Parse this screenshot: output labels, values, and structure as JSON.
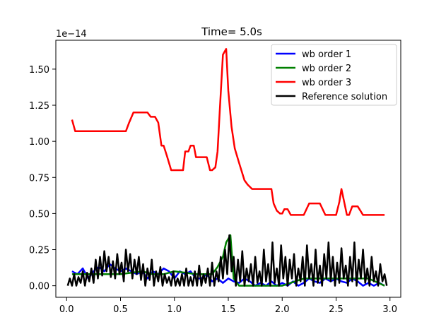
{
  "chart_data": {
    "type": "line",
    "title": "Time= 5.0s",
    "xlabel": "",
    "ylabel": "",
    "y_offset_label": "1e−14",
    "xlim": [
      -0.1,
      3.1
    ],
    "ylim": [
      -0.08,
      1.7
    ],
    "x_ticks": [
      0.0,
      0.5,
      1.0,
      1.5,
      2.0,
      2.5,
      3.0
    ],
    "x_tick_labels": [
      "0.0",
      "0.5",
      "1.0",
      "1.5",
      "2.0",
      "2.5",
      "3.0"
    ],
    "y_ticks": [
      0.0,
      0.25,
      0.5,
      0.75,
      1.0,
      1.25,
      1.5
    ],
    "y_tick_labels": [
      "0.00",
      "0.25",
      "0.50",
      "0.75",
      "1.00",
      "1.25",
      "1.50"
    ],
    "grid": false,
    "legend_position": "top-right",
    "series": [
      {
        "name": "wb order 1",
        "color": "#0000ff",
        "x": [
          0.05,
          0.1,
          0.15,
          0.2,
          0.25,
          0.3,
          0.35,
          0.4,
          0.45,
          0.5,
          0.55,
          0.6,
          0.65,
          0.7,
          0.75,
          0.8,
          0.85,
          0.9,
          0.95,
          1.0,
          1.05,
          1.1,
          1.15,
          1.2,
          1.25,
          1.3,
          1.35,
          1.4,
          1.45,
          1.5,
          1.55,
          1.6,
          1.65,
          1.7,
          1.75,
          1.8,
          1.85,
          1.9,
          1.95,
          2.0,
          2.05,
          2.1,
          2.15,
          2.2,
          2.25,
          2.3,
          2.35,
          2.4,
          2.45,
          2.5,
          2.55,
          2.6,
          2.65,
          2.7,
          2.75,
          2.8,
          2.85,
          2.9,
          2.95
        ],
        "y": [
          0.1,
          0.08,
          0.12,
          0.05,
          0.1,
          0.13,
          0.1,
          0.15,
          0.12,
          0.1,
          0.12,
          0.1,
          0.08,
          0.1,
          0.05,
          0.1,
          0.08,
          0.12,
          0.1,
          0.05,
          0.1,
          0.08,
          0.1,
          0.05,
          0.05,
          0.08,
          0.03,
          0.05,
          0.02,
          0.05,
          0.03,
          0.02,
          0.05,
          0.03,
          0.0,
          0.02,
          0.0,
          0.03,
          0.0,
          0.02,
          0.0,
          0.03,
          0.0,
          0.02,
          0.05,
          0.03,
          0.02,
          0.05,
          0.03,
          0.05,
          0.03,
          0.02,
          0.05,
          0.03,
          0.0,
          0.02,
          0.0,
          0.02,
          0.0
        ]
      },
      {
        "name": "wb order 2",
        "color": "#008000",
        "x": [
          0.05,
          0.2,
          0.3,
          0.5,
          0.7,
          0.8,
          0.9,
          1.0,
          1.2,
          1.35,
          1.4,
          1.45,
          1.48,
          1.52,
          1.55,
          1.6,
          1.7,
          1.8,
          1.9,
          2.0,
          2.2,
          2.3,
          2.5,
          2.6,
          2.7,
          2.8,
          2.95
        ],
        "y": [
          0.08,
          0.08,
          0.08,
          0.08,
          0.1,
          0.08,
          0.08,
          0.1,
          0.08,
          0.08,
          0.13,
          0.2,
          0.3,
          0.35,
          0.05,
          0.0,
          0.0,
          0.0,
          0.0,
          0.0,
          0.05,
          0.05,
          0.05,
          0.05,
          0.05,
          0.05,
          0.0
        ]
      },
      {
        "name": "wb order 3",
        "color": "#ff0000",
        "x": [
          0.05,
          0.08,
          0.12,
          0.3,
          0.45,
          0.55,
          0.58,
          0.62,
          0.75,
          0.78,
          0.82,
          0.85,
          0.88,
          0.9,
          0.93,
          0.97,
          1.0,
          1.05,
          1.08,
          1.1,
          1.13,
          1.15,
          1.18,
          1.2,
          1.23,
          1.26,
          1.3,
          1.33,
          1.35,
          1.38,
          1.4,
          1.42,
          1.45,
          1.48,
          1.5,
          1.53,
          1.56,
          1.6,
          1.65,
          1.68,
          1.72,
          1.75,
          1.8,
          1.85,
          1.9,
          1.92,
          1.95,
          1.98,
          2.0,
          2.02,
          2.05,
          2.08,
          2.12,
          2.15,
          2.18,
          2.2,
          2.25,
          2.3,
          2.32,
          2.35,
          2.4,
          2.45,
          2.5,
          2.53,
          2.55,
          2.6,
          2.62,
          2.65,
          2.7,
          2.75,
          2.8,
          2.9,
          2.95
        ],
        "y": [
          1.15,
          1.07,
          1.07,
          1.07,
          1.07,
          1.07,
          1.13,
          1.2,
          1.2,
          1.17,
          1.17,
          1.13,
          0.97,
          0.97,
          0.9,
          0.8,
          0.8,
          0.8,
          0.8,
          0.93,
          0.93,
          0.97,
          0.97,
          0.89,
          0.89,
          0.89,
          0.89,
          0.8,
          0.8,
          0.82,
          0.93,
          1.2,
          1.6,
          1.64,
          1.35,
          1.1,
          0.95,
          0.85,
          0.73,
          0.7,
          0.67,
          0.67,
          0.67,
          0.67,
          0.67,
          0.57,
          0.52,
          0.5,
          0.5,
          0.53,
          0.53,
          0.49,
          0.49,
          0.49,
          0.49,
          0.49,
          0.57,
          0.57,
          0.57,
          0.57,
          0.49,
          0.49,
          0.49,
          0.58,
          0.67,
          0.49,
          0.49,
          0.55,
          0.55,
          0.49,
          0.49,
          0.49,
          0.49
        ]
      },
      {
        "name": "Reference solution",
        "color": "#000000",
        "x": [
          0.01,
          0.03,
          0.05,
          0.07,
          0.09,
          0.11,
          0.13,
          0.15,
          0.17,
          0.19,
          0.21,
          0.23,
          0.25,
          0.27,
          0.29,
          0.31,
          0.33,
          0.35,
          0.37,
          0.39,
          0.41,
          0.43,
          0.45,
          0.47,
          0.49,
          0.51,
          0.53,
          0.55,
          0.57,
          0.59,
          0.61,
          0.63,
          0.65,
          0.67,
          0.69,
          0.71,
          0.73,
          0.75,
          0.77,
          0.79,
          0.81,
          0.83,
          0.85,
          0.87,
          0.89,
          0.91,
          0.93,
          0.95,
          0.97,
          0.99,
          1.01,
          1.03,
          1.05,
          1.07,
          1.09,
          1.11,
          1.13,
          1.15,
          1.17,
          1.19,
          1.21,
          1.23,
          1.25,
          1.27,
          1.29,
          1.31,
          1.33,
          1.35,
          1.37,
          1.39,
          1.41,
          1.43,
          1.45,
          1.47,
          1.49,
          1.51,
          1.53,
          1.55,
          1.57,
          1.59,
          1.61,
          1.63,
          1.65,
          1.67,
          1.69,
          1.71,
          1.73,
          1.75,
          1.77,
          1.79,
          1.81,
          1.83,
          1.85,
          1.87,
          1.89,
          1.91,
          1.93,
          1.95,
          1.97,
          1.99,
          2.01,
          2.03,
          2.05,
          2.07,
          2.09,
          2.11,
          2.13,
          2.15,
          2.17,
          2.19,
          2.21,
          2.23,
          2.25,
          2.27,
          2.29,
          2.31,
          2.33,
          2.35,
          2.37,
          2.39,
          2.41,
          2.43,
          2.45,
          2.47,
          2.49,
          2.51,
          2.53,
          2.55,
          2.57,
          2.59,
          2.61,
          2.63,
          2.65,
          2.67,
          2.69,
          2.71,
          2.73,
          2.75,
          2.77,
          2.79,
          2.81,
          2.83,
          2.85,
          2.87,
          2.89,
          2.91,
          2.93,
          2.95,
          2.97
        ],
        "y": [
          0.0,
          0.05,
          0.0,
          0.08,
          0.0,
          0.06,
          0.02,
          0.1,
          0.0,
          0.09,
          0.03,
          0.12,
          0.02,
          0.18,
          0.05,
          0.2,
          0.07,
          0.24,
          0.1,
          0.2,
          0.06,
          0.17,
          0.05,
          0.22,
          0.08,
          0.16,
          0.03,
          0.25,
          0.1,
          0.22,
          0.05,
          0.18,
          0.08,
          0.2,
          0.04,
          0.15,
          0.0,
          0.12,
          0.04,
          0.18,
          0.0,
          0.1,
          0.03,
          0.13,
          0.0,
          0.08,
          0.02,
          0.06,
          0.0,
          0.1,
          0.0,
          0.05,
          0.0,
          0.08,
          0.0,
          0.12,
          0.0,
          0.06,
          0.0,
          0.1,
          0.0,
          0.14,
          0.0,
          0.08,
          0.02,
          0.12,
          0.0,
          0.16,
          0.0,
          0.1,
          0.03,
          0.2,
          0.05,
          0.25,
          0.08,
          0.35,
          0.1,
          0.2,
          0.0,
          0.18,
          0.03,
          0.24,
          0.0,
          0.12,
          0.03,
          0.15,
          0.0,
          0.2,
          0.02,
          0.1,
          0.0,
          0.25,
          0.03,
          0.15,
          0.0,
          0.3,
          0.02,
          0.12,
          0.0,
          0.28,
          0.05,
          0.2,
          0.0,
          0.18,
          0.05,
          0.22,
          0.0,
          0.12,
          0.03,
          0.2,
          0.0,
          0.28,
          0.05,
          0.15,
          0.0,
          0.25,
          0.02,
          0.14,
          0.0,
          0.22,
          0.05,
          0.3,
          0.03,
          0.2,
          0.0,
          0.16,
          0.02,
          0.26,
          0.05,
          0.14,
          0.0,
          0.2,
          0.03,
          0.3,
          0.0,
          0.18,
          0.05,
          0.25,
          0.02,
          0.12,
          0.0,
          0.2,
          0.03,
          0.1,
          0.0,
          0.15,
          0.03,
          0.08,
          0.0
        ]
      }
    ]
  }
}
